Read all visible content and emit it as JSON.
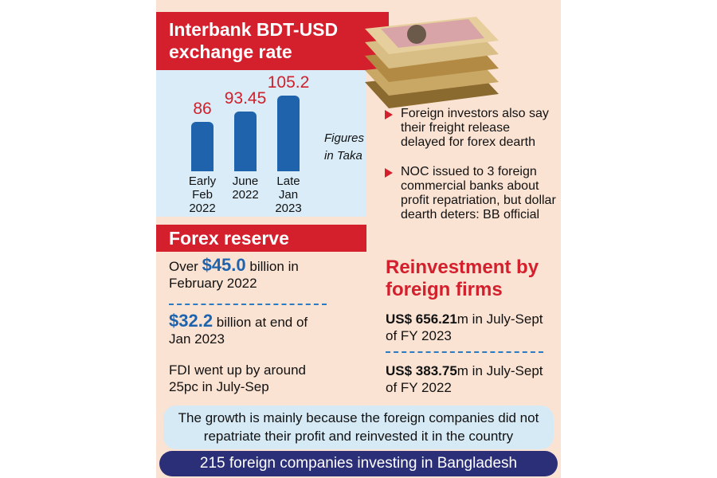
{
  "chart_data": {
    "type": "bar",
    "title": "Interbank BDT-USD exchange rate",
    "categories": [
      "Early\nFeb\n2022",
      "June\n2022",
      "Late\nJan\n2023"
    ],
    "values": [
      86,
      93.45,
      105.2
    ],
    "color": "#1f63ad",
    "label_color": "#d0202c",
    "ylim": [
      50,
      110
    ],
    "annotation": "Figures\nin Taka"
  },
  "bullets": [
    "Foreign investors also say their freight release delayed for forex dearth",
    "NOC issued to 3 foreign commercial banks about profit repatriation, but dollar dearth deters: BB official"
  ],
  "forex_reserve": {
    "title": "Forex reserve",
    "items": [
      {
        "before": "Over",
        "highlight": "$45.0",
        "after": "billion in February 2022"
      },
      {
        "highlight": "$32.2",
        "after": "billion at end of Jan 2023"
      }
    ],
    "fdi": "FDI went up by around 25pc in July-Sep"
  },
  "reinvestment": {
    "title": "Reinvestment by foreign firms",
    "items": [
      {
        "amount": "US$ 656.21",
        "text": "m in July-Sept of FY 2023"
      },
      {
        "amount": "US$ 383.75",
        "text": "m in July-Sept of FY 2022"
      }
    ]
  },
  "growth_note": "The growth is mainly because the foreign companies did not repatriate their profit and reinvested it in the country",
  "footer": "215 foreign companies investing in Bangladesh"
}
